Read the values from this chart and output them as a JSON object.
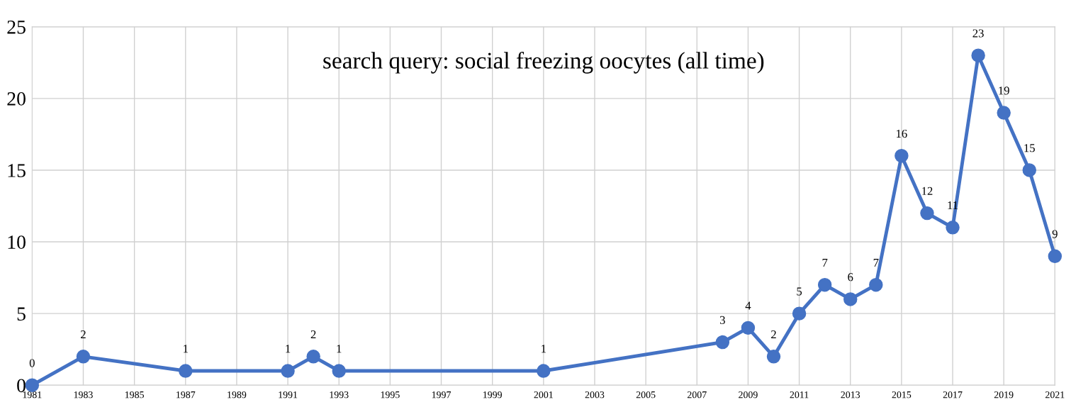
{
  "chart_data": {
    "type": "line",
    "title": "search query: social freezing oocytes (all time)",
    "x": [
      1981,
      1983,
      1987,
      1991,
      1992,
      1993,
      2001,
      2008,
      2009,
      2010,
      2011,
      2012,
      2013,
      2014,
      2015,
      2016,
      2017,
      2018,
      2019,
      2020,
      2021
    ],
    "series": [
      {
        "color": "#4472c4",
        "values": [
          0,
          2,
          1,
          1,
          2,
          1,
          1,
          3,
          4,
          2,
          5,
          7,
          6,
          7,
          16,
          12,
          11,
          23,
          19,
          15,
          9
        ]
      }
    ],
    "xlim": [
      1981,
      2021
    ],
    "xticks": [
      1981,
      1983,
      1985,
      1987,
      1989,
      1991,
      1993,
      1995,
      1997,
      1999,
      2001,
      2003,
      2005,
      2007,
      2009,
      2011,
      2013,
      2015,
      2017,
      2019,
      2021
    ],
    "ylim": [
      0,
      25
    ],
    "yticks": [
      0,
      5,
      10,
      15,
      20,
      25
    ],
    "grid": true,
    "marker": "circle",
    "line_style": "solid",
    "data_labels": true
  }
}
